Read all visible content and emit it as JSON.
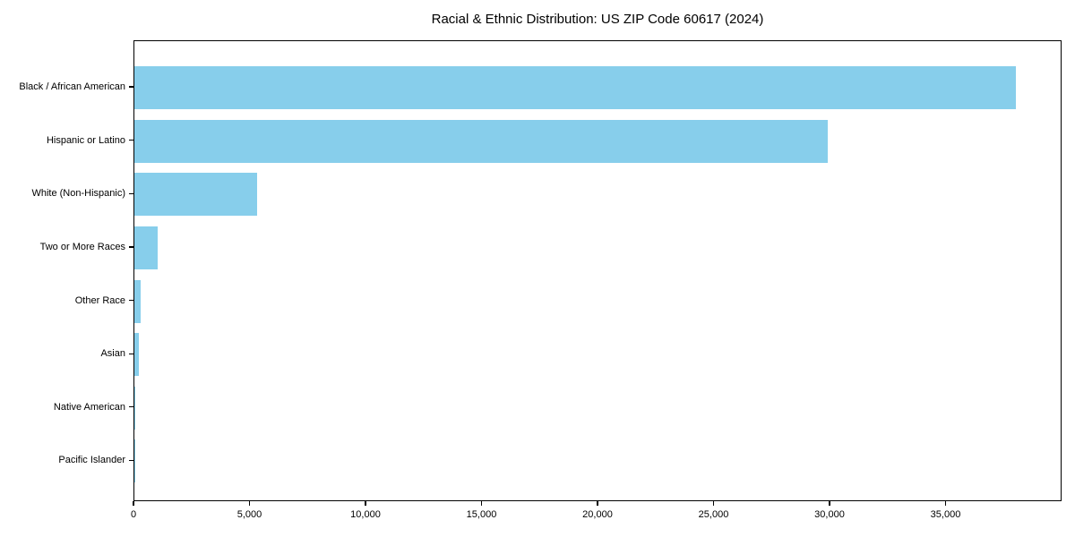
{
  "title": "Racial & Ethnic Distribution: US ZIP Code 60617 (2024)",
  "chart_data": {
    "type": "bar",
    "orientation": "horizontal",
    "title": "Racial & Ethnic Distribution: US ZIP Code 60617 (2024)",
    "categories": [
      "Black / African American",
      "Hispanic or Latino",
      "White (Non-Hispanic)",
      "Two or More Races",
      "Other Race",
      "Asian",
      "Native American",
      "Pacific Islander"
    ],
    "values": [
      38050,
      29950,
      5300,
      1000,
      260,
      180,
      40,
      10
    ],
    "xlabel": "",
    "ylabel": "",
    "xlim": [
      0,
      40000
    ],
    "x_tick_values": [
      0,
      5000,
      10000,
      15000,
      20000,
      25000,
      30000,
      35000
    ],
    "x_tick_labels": [
      "0",
      "5,000",
      "10,000",
      "15,000",
      "20,000",
      "25,000",
      "30,000",
      "35,000"
    ],
    "bar_color": "#87CEEB",
    "frame_color": "#000000",
    "grid": "off",
    "legend": "none"
  }
}
